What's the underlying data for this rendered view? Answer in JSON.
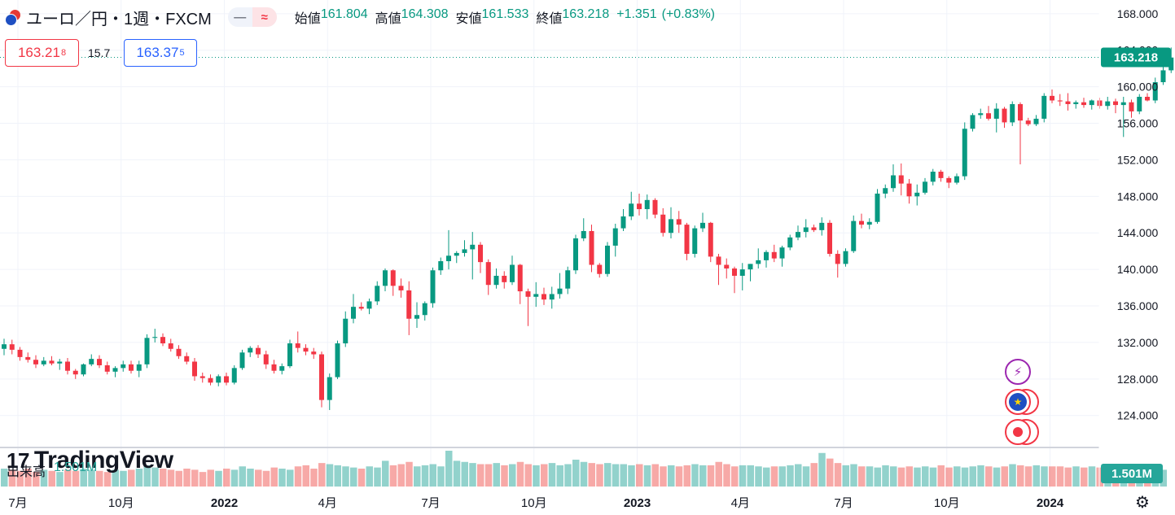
{
  "header": {
    "symbol": "ユーロ／円・1週・FXCM",
    "mode_left": "—",
    "mode_right": "≈",
    "open_label": "始値",
    "open": "161.804",
    "high_label": "高値",
    "high": "164.308",
    "low_label": "安値",
    "low": "161.533",
    "close_label": "終値",
    "close": "163.218",
    "change": "+1.351",
    "change_pct": "(+0.83%)"
  },
  "trade": {
    "sell_price": "163.21",
    "sell_sup": "8",
    "spread": "15.7",
    "buy_price": "163.37",
    "buy_sup": "5"
  },
  "volume_legend": {
    "label": "出来高",
    "value": "1.501M"
  },
  "branding": {
    "mark": "17",
    "name": "TradingView"
  },
  "icons": {
    "bolt": "lightning-icon",
    "eur": "euro-flag-icon",
    "dot": "record-icon",
    "settings": "settings-icon"
  },
  "colors": {
    "up": "#089981",
    "down": "#f23645",
    "vol_up": "#26a69a",
    "vol_down": "#ef5350",
    "accent": "#2962ff"
  },
  "chart_data": {
    "type": "candlestick",
    "title": "ユーロ／円・1週・FXCM",
    "price_axis": {
      "ylim": [
        120.5,
        169.5
      ],
      "ticks": [
        "168.000",
        "164.000",
        "160.000",
        "156.000",
        "152.000",
        "148.000",
        "144.000",
        "140.000",
        "136.000",
        "132.000",
        "128.000",
        "124.000"
      ],
      "last_price_label": "163.218",
      "last_price": 163.218
    },
    "time_axis": {
      "labels": [
        "7月",
        "10月",
        "2022",
        "4月",
        "7月",
        "10月",
        "2023",
        "4月",
        "7月",
        "10月",
        "2024"
      ],
      "label_weeks": [
        0,
        13,
        26,
        39,
        52,
        65,
        78,
        91,
        104,
        117,
        130
      ]
    },
    "volume_axis": {
      "label": "1.501M",
      "last_volume": 1.501,
      "unit": "M"
    },
    "candles": [
      [
        131.3,
        132.4,
        130.6,
        131.8
      ],
      [
        131.8,
        132.3,
        130.7,
        131.2
      ],
      [
        131.2,
        131.5,
        130.0,
        130.4
      ],
      [
        130.4,
        130.9,
        129.8,
        130.1
      ],
      [
        130.1,
        130.6,
        129.2,
        129.6
      ],
      [
        129.6,
        130.4,
        129.4,
        130.0
      ],
      [
        130.0,
        130.5,
        129.5,
        129.7
      ],
      [
        129.7,
        130.2,
        129.0,
        129.9
      ],
      [
        129.9,
        130.3,
        128.5,
        128.9
      ],
      [
        128.9,
        129.1,
        128.0,
        128.5
      ],
      [
        128.5,
        129.7,
        128.3,
        129.6
      ],
      [
        129.6,
        130.7,
        129.4,
        130.2
      ],
      [
        130.2,
        130.6,
        129.2,
        129.5
      ],
      [
        129.5,
        129.9,
        128.5,
        128.8
      ],
      [
        128.8,
        129.4,
        128.2,
        129.2
      ],
      [
        129.2,
        130.0,
        128.8,
        129.6
      ],
      [
        129.6,
        130.0,
        128.6,
        128.9
      ],
      [
        128.9,
        130.0,
        128.2,
        129.6
      ],
      [
        129.6,
        132.9,
        129.2,
        132.5
      ],
      [
        132.5,
        133.5,
        132.0,
        132.6
      ],
      [
        132.6,
        133.0,
        131.6,
        131.9
      ],
      [
        131.9,
        132.4,
        131.0,
        131.3
      ],
      [
        131.3,
        131.7,
        130.2,
        130.5
      ],
      [
        130.5,
        130.9,
        129.6,
        129.9
      ],
      [
        129.9,
        130.3,
        127.8,
        128.3
      ],
      [
        128.3,
        128.7,
        127.6,
        128.1
      ],
      [
        128.1,
        128.5,
        127.3,
        127.6
      ],
      [
        127.6,
        128.5,
        127.2,
        128.3
      ],
      [
        128.3,
        128.7,
        127.3,
        127.6
      ],
      [
        127.6,
        129.5,
        127.4,
        129.2
      ],
      [
        129.2,
        131.2,
        129.0,
        130.9
      ],
      [
        130.9,
        131.6,
        130.4,
        131.4
      ],
      [
        131.4,
        131.7,
        130.3,
        130.7
      ],
      [
        130.7,
        131.1,
        129.1,
        129.6
      ],
      [
        129.6,
        130.1,
        128.6,
        128.9
      ],
      [
        128.9,
        129.7,
        128.5,
        129.4
      ],
      [
        129.4,
        132.3,
        129.2,
        131.9
      ],
      [
        131.9,
        133.2,
        130.9,
        131.4
      ],
      [
        131.4,
        131.8,
        130.6,
        131.0
      ],
      [
        131.0,
        131.4,
        130.2,
        130.7
      ],
      [
        130.7,
        131.0,
        124.9,
        125.7
      ],
      [
        125.7,
        128.6,
        124.6,
        128.2
      ],
      [
        128.2,
        132.2,
        128.0,
        131.9
      ],
      [
        131.9,
        135.4,
        131.5,
        134.6
      ],
      [
        134.6,
        137.3,
        134.1,
        135.9
      ],
      [
        135.9,
        136.4,
        135.5,
        135.7
      ],
      [
        135.7,
        136.8,
        135.1,
        136.5
      ],
      [
        136.5,
        138.7,
        136.1,
        138.2
      ],
      [
        138.2,
        140.1,
        137.6,
        139.9
      ],
      [
        139.9,
        140.0,
        137.1,
        138.2
      ],
      [
        138.2,
        139.0,
        136.9,
        137.7
      ],
      [
        137.7,
        138.7,
        132.8,
        134.6
      ],
      [
        134.6,
        136.4,
        133.6,
        135.0
      ],
      [
        135.0,
        136.5,
        134.4,
        136.3
      ],
      [
        136.3,
        140.2,
        135.8,
        139.9
      ],
      [
        139.9,
        141.3,
        139.4,
        140.9
      ],
      [
        140.9,
        144.3,
        140.0,
        141.5
      ],
      [
        141.5,
        142.0,
        140.7,
        141.8
      ],
      [
        141.8,
        143.2,
        141.4,
        142.2
      ],
      [
        142.2,
        144.1,
        138.9,
        142.7
      ],
      [
        142.7,
        143.0,
        139.6,
        140.8
      ],
      [
        140.8,
        141.1,
        137.2,
        138.3
      ],
      [
        138.3,
        140.1,
        137.9,
        139.3
      ],
      [
        139.3,
        139.8,
        137.9,
        138.6
      ],
      [
        138.6,
        141.5,
        138.3,
        140.5
      ],
      [
        140.5,
        140.6,
        136.2,
        137.6
      ],
      [
        137.6,
        137.9,
        133.8,
        137.0
      ],
      [
        137.0,
        138.6,
        135.9,
        137.3
      ],
      [
        137.3,
        138.0,
        136.1,
        136.7
      ],
      [
        136.7,
        138.1,
        135.7,
        137.3
      ],
      [
        137.3,
        139.6,
        136.8,
        137.9
      ],
      [
        137.9,
        140.3,
        137.3,
        139.9
      ],
      [
        139.9,
        143.8,
        139.5,
        143.4
      ],
      [
        143.4,
        145.6,
        143.1,
        144.2
      ],
      [
        144.2,
        144.9,
        139.7,
        140.5
      ],
      [
        140.5,
        140.7,
        139.1,
        139.5
      ],
      [
        139.5,
        143.0,
        139.2,
        142.6
      ],
      [
        142.6,
        145.0,
        141.4,
        144.5
      ],
      [
        144.5,
        146.6,
        144.2,
        145.8
      ],
      [
        145.8,
        148.5,
        145.4,
        147.2
      ],
      [
        147.2,
        148.3,
        145.9,
        146.6
      ],
      [
        146.6,
        148.2,
        145.5,
        147.6
      ],
      [
        147.6,
        147.8,
        145.6,
        146.0
      ],
      [
        146.0,
        146.7,
        143.6,
        144.0
      ],
      [
        144.0,
        146.8,
        143.4,
        145.5
      ],
      [
        145.5,
        146.4,
        144.0,
        144.9
      ],
      [
        144.9,
        145.1,
        141.0,
        141.7
      ],
      [
        141.7,
        144.8,
        141.3,
        144.5
      ],
      [
        144.5,
        146.2,
        144.1,
        145.1
      ],
      [
        145.1,
        145.2,
        140.8,
        141.4
      ],
      [
        141.4,
        141.7,
        138.3,
        140.5
      ],
      [
        140.5,
        141.2,
        139.0,
        140.1
      ],
      [
        140.1,
        140.3,
        137.4,
        139.3
      ],
      [
        139.3,
        140.7,
        137.7,
        140.0
      ],
      [
        140.0,
        140.6,
        138.7,
        140.6
      ],
      [
        140.6,
        142.3,
        140.1,
        141.0
      ],
      [
        141.0,
        142.1,
        140.2,
        141.9
      ],
      [
        141.9,
        142.7,
        140.8,
        141.2
      ],
      [
        141.2,
        142.6,
        140.3,
        142.4
      ],
      [
        142.4,
        143.8,
        142.1,
        143.5
      ],
      [
        143.5,
        144.8,
        143.2,
        144.1
      ],
      [
        144.1,
        145.5,
        143.5,
        144.6
      ],
      [
        144.6,
        144.9,
        144.1,
        144.3
      ],
      [
        144.3,
        145.7,
        143.7,
        145.1
      ],
      [
        145.1,
        145.4,
        141.4,
        141.7
      ],
      [
        141.7,
        142.1,
        139.1,
        140.6
      ],
      [
        140.6,
        142.3,
        140.3,
        142.0
      ],
      [
        142.0,
        145.9,
        141.8,
        145.3
      ],
      [
        145.3,
        146.1,
        144.5,
        144.9
      ],
      [
        144.9,
        145.6,
        144.4,
        145.2
      ],
      [
        145.2,
        148.8,
        145.0,
        148.3
      ],
      [
        148.3,
        149.3,
        147.8,
        148.9
      ],
      [
        148.9,
        151.5,
        148.5,
        150.3
      ],
      [
        150.3,
        151.6,
        148.1,
        149.4
      ],
      [
        149.4,
        149.9,
        147.2,
        148.0
      ],
      [
        148.0,
        149.3,
        147.0,
        148.4
      ],
      [
        148.4,
        150.0,
        148.2,
        149.6
      ],
      [
        149.6,
        151.0,
        149.2,
        150.7
      ],
      [
        150.7,
        150.9,
        149.6,
        150.0
      ],
      [
        150.0,
        150.2,
        148.9,
        149.5
      ],
      [
        149.5,
        150.5,
        149.3,
        150.2
      ],
      [
        150.2,
        156.1,
        149.8,
        155.4
      ],
      [
        155.4,
        157.1,
        155.1,
        156.9
      ],
      [
        156.9,
        157.6,
        156.5,
        157.1
      ],
      [
        157.1,
        157.9,
        156.3,
        156.5
      ],
      [
        156.5,
        158.2,
        155.0,
        157.6
      ],
      [
        157.6,
        157.8,
        155.5,
        156.1
      ],
      [
        156.1,
        158.4,
        155.7,
        158.1
      ],
      [
        158.1,
        158.3,
        151.5,
        156.3
      ],
      [
        156.3,
        156.6,
        155.7,
        155.9
      ],
      [
        155.9,
        156.9,
        155.7,
        156.5
      ],
      [
        156.5,
        159.3,
        156.1,
        159.0
      ],
      [
        159.0,
        159.7,
        158.2,
        158.5
      ],
      [
        158.5,
        159.2,
        157.9,
        158.4
      ],
      [
        158.4,
        159.3,
        157.4,
        158.1
      ],
      [
        158.1,
        158.5,
        157.6,
        158.3
      ],
      [
        158.3,
        158.8,
        157.7,
        158.0
      ],
      [
        158.0,
        158.6,
        157.5,
        158.5
      ],
      [
        158.5,
        158.8,
        157.6,
        157.9
      ],
      [
        157.9,
        158.9,
        157.5,
        158.4
      ],
      [
        158.4,
        158.7,
        157.1,
        158.0
      ],
      [
        158.0,
        158.9,
        154.5,
        158.3
      ],
      [
        158.3,
        158.6,
        156.6,
        157.3
      ],
      [
        157.3,
        159.2,
        157.0,
        158.9
      ],
      [
        158.9,
        159.3,
        158.4,
        158.5
      ],
      [
        158.5,
        161.0,
        158.2,
        160.5
      ],
      [
        160.5,
        162.5,
        160.2,
        161.8
      ],
      [
        161.8,
        164.3,
        161.5,
        163.2
      ]
    ],
    "volumes": [
      1.6,
      1.5,
      1.4,
      1.6,
      1.3,
      1.5,
      1.4,
      1.3,
      1.5,
      1.4,
      1.6,
      1.5,
      1.4,
      1.3,
      1.5,
      1.4,
      1.5,
      1.6,
      1.9,
      1.7,
      1.6,
      1.5,
      1.4,
      1.6,
      1.5,
      1.3,
      1.5,
      1.4,
      1.6,
      1.5,
      1.8,
      1.6,
      1.5,
      1.4,
      1.7,
      1.6,
      1.5,
      1.8,
      1.9,
      1.6,
      2.1,
      2.0,
      1.9,
      1.8,
      1.7,
      1.6,
      1.8,
      1.7,
      2.3,
      1.9,
      2.0,
      2.2,
      1.8,
      1.9,
      2.0,
      1.8,
      3.2,
      2.3,
      2.2,
      2.1,
      2.0,
      2.0,
      2.1,
      1.9,
      2.0,
      2.2,
      2.0,
      1.9,
      2.0,
      2.1,
      1.9,
      2.0,
      2.4,
      2.2,
      2.1,
      2.0,
      2.1,
      2.0,
      2.0,
      1.9,
      2.0,
      1.9,
      2.0,
      1.8,
      1.9,
      1.8,
      1.9,
      2.0,
      1.9,
      1.9,
      2.2,
      2.0,
      1.8,
      1.9,
      1.9,
      1.8,
      1.7,
      1.8,
      1.8,
      1.9,
      2.0,
      1.8,
      2.1,
      3.0,
      2.5,
      2.1,
      1.9,
      2.0,
      1.8,
      1.8,
      1.7,
      1.9,
      1.8,
      1.7,
      1.8,
      1.7,
      1.8,
      1.7,
      1.9,
      1.7,
      1.8,
      1.7,
      1.8,
      1.9,
      1.8,
      1.7,
      1.8,
      2.0,
      1.9,
      1.8,
      1.9,
      1.8,
      1.8,
      1.8,
      1.7,
      1.8,
      1.7,
      1.8,
      1.7,
      1.8,
      2.0,
      1.9,
      1.8,
      1.7,
      1.6,
      1.6,
      1.5
    ]
  }
}
